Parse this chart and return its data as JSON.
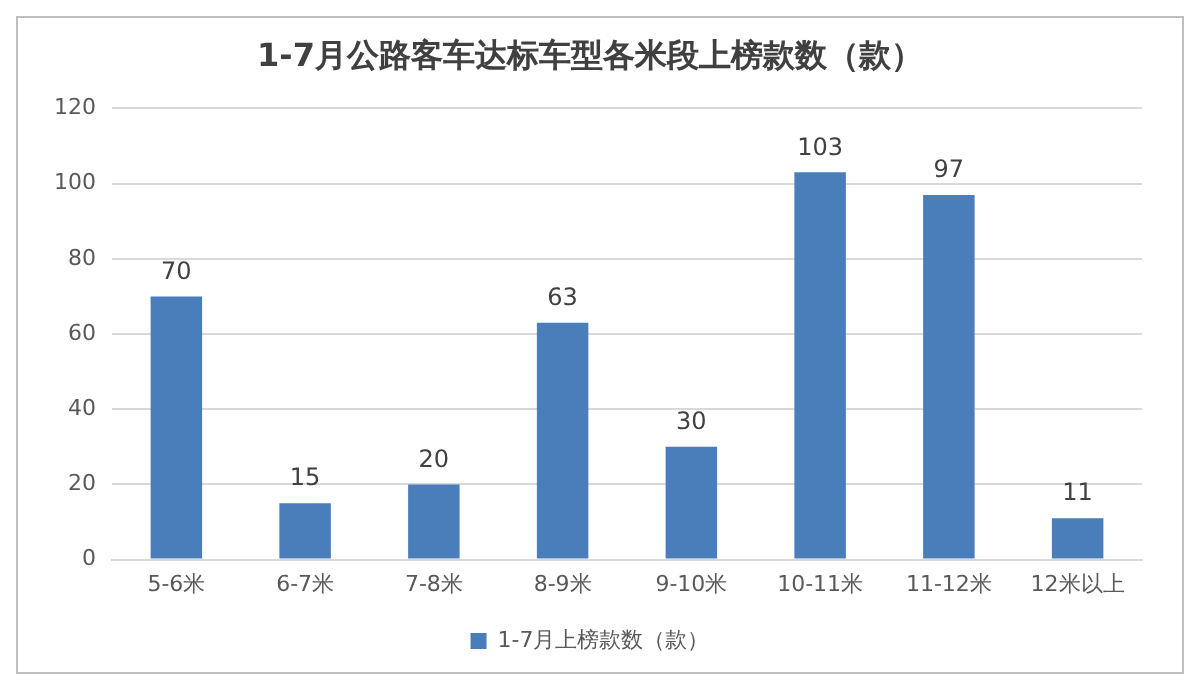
{
  "chart_data": {
    "type": "bar",
    "title": "1-7月公路客车达标车型各米段上榜款数（款）",
    "categories": [
      "5-6米",
      "6-7米",
      "7-8米",
      "8-9米",
      "9-10米",
      "10-11米",
      "11-12米",
      "12米以上"
    ],
    "series": [
      {
        "name": "1-7月上榜款数（款）",
        "color": "#4a7ebb",
        "values": [
          70,
          15,
          20,
          63,
          30,
          103,
          97,
          11
        ]
      }
    ],
    "ylim": [
      0,
      120
    ],
    "yticks": [
      0,
      20,
      40,
      60,
      80,
      100,
      120
    ],
    "grid": "y",
    "legend": "bottom",
    "data_labels": true
  }
}
